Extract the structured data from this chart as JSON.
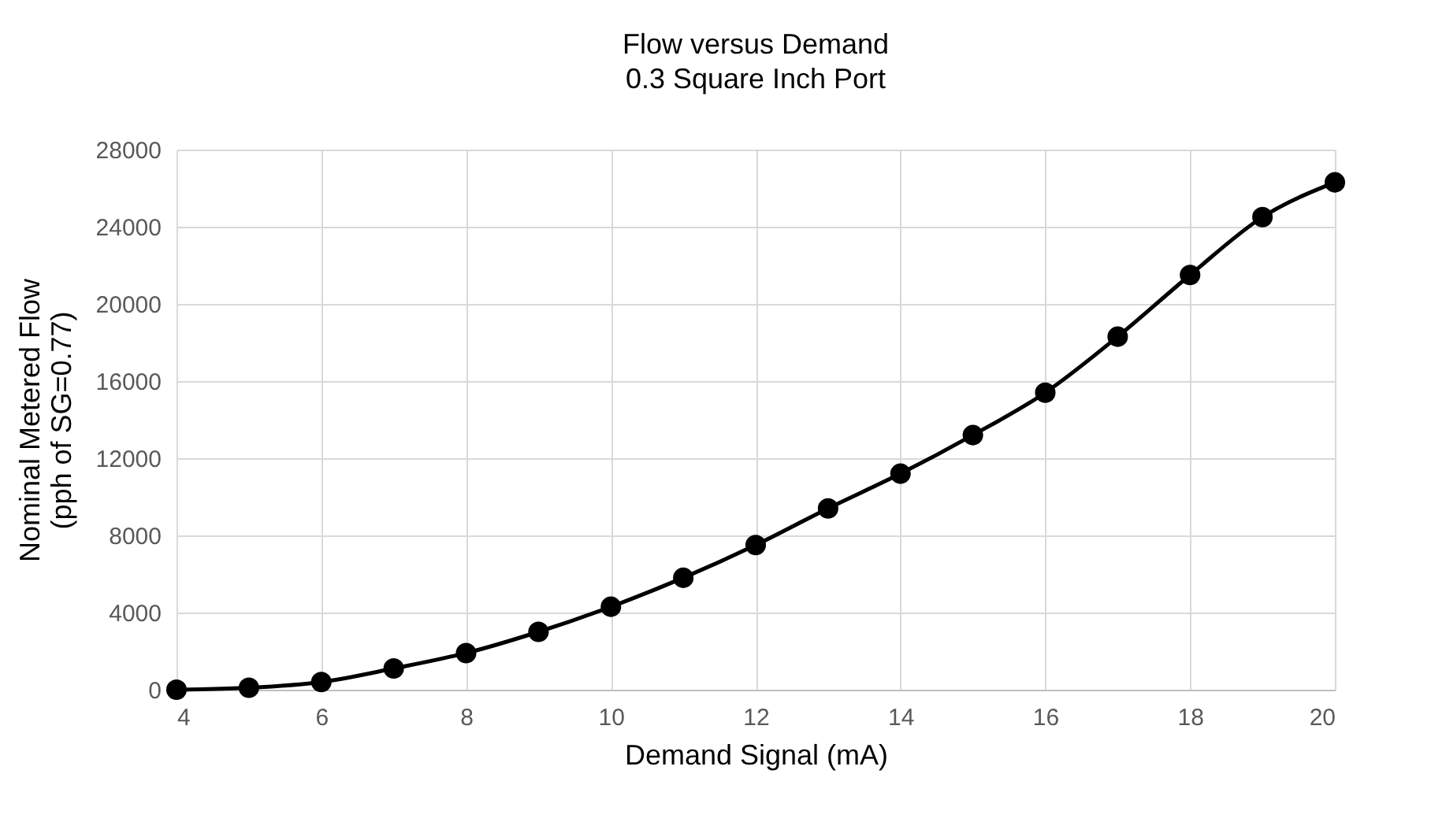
{
  "chart_data": {
    "type": "line",
    "title": "Flow versus Demand",
    "subtitle": "0.3 Square Inch Port",
    "xlabel": "Demand Signal (mA)",
    "ylabel": [
      "Nominal Metered Flow",
      "(pph of SG=0.77)"
    ],
    "x": [
      4,
      5,
      6,
      7,
      8,
      9,
      10,
      11,
      12,
      13,
      14,
      15,
      16,
      17,
      18,
      19,
      20
    ],
    "series": [
      {
        "color": "#000000",
        "values": [
          0,
          100,
          400,
          1100,
          1900,
          3000,
          4300,
          5800,
          7500,
          9400,
          11200,
          13200,
          15400,
          18300,
          21500,
          24500,
          26300
        ]
      }
    ],
    "xlim": [
      4,
      20
    ],
    "xticks": [
      4,
      6,
      8,
      10,
      12,
      14,
      16,
      18,
      20
    ],
    "ylim": [
      0,
      28000
    ],
    "yticks": [
      0,
      4000,
      8000,
      12000,
      16000,
      20000,
      24000,
      28000
    ],
    "grid": true,
    "marker": "circle",
    "line_style": "solid"
  }
}
